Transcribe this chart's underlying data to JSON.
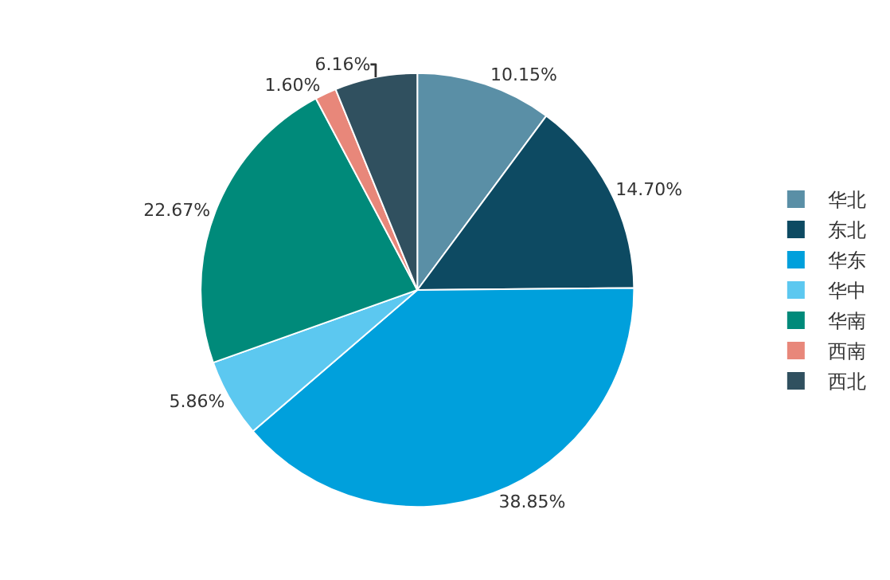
{
  "chart_data": {
    "type": "pie",
    "categories": [
      "华北",
      "东北",
      "华东",
      "华中",
      "华南",
      "西南",
      "西北"
    ],
    "values": [
      10.15,
      14.7,
      38.85,
      5.86,
      22.67,
      1.6,
      6.16
    ],
    "colors": [
      "#5a8fa6",
      "#0d4a62",
      "#00a0dc",
      "#5cc8f0",
      "#008a7a",
      "#e8877a",
      "#30505f"
    ],
    "value_labels": [
      "10.15%",
      "14.70%",
      "38.85%",
      "5.86%",
      "22.67%",
      "1.60%",
      "6.16%"
    ],
    "legend": "right"
  }
}
